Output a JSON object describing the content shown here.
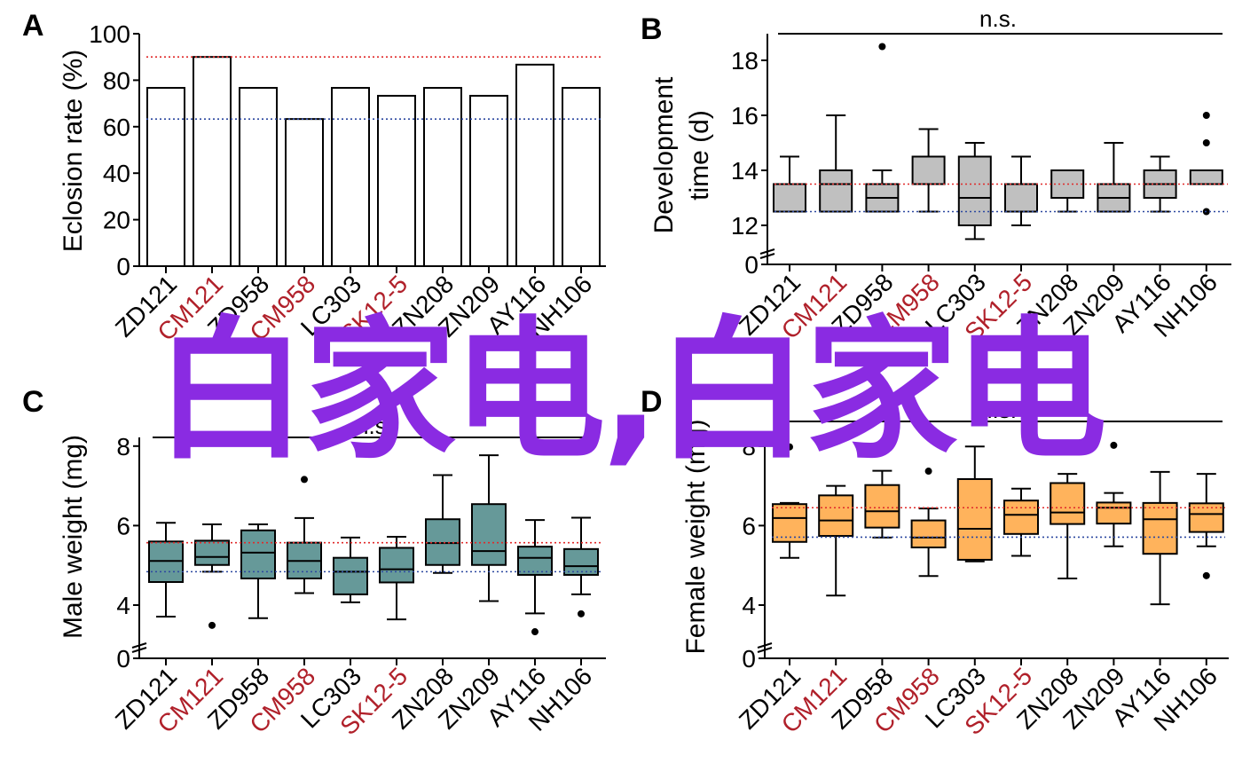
{
  "watermark": "白家电,白家电",
  "colors": {
    "ref_high": "#e02a2a",
    "ref_low": "#2c48a0",
    "label_highlight": "#b0202a",
    "box_B": "#c0c0c0",
    "box_C": "#669999",
    "box_D": "#ffb35c"
  },
  "categories": [
    "ZD121",
    "CM121",
    "ZD958",
    "CM958",
    "LC303",
    "SK12-5",
    "ZN208",
    "ZN209",
    "AY116",
    "NH106"
  ],
  "highlighted_categories": [
    "CM121",
    "CM958",
    "SK12-5"
  ],
  "chart_data": [
    {
      "panel": "A",
      "type": "bar",
      "ylabel": "Eclosion rate (%)",
      "ylim": [
        0,
        100
      ],
      "yticks": [
        0,
        20,
        40,
        60,
        80,
        100
      ],
      "values": [
        76.7,
        90,
        76.7,
        63.3,
        76.7,
        73.3,
        76.7,
        73.3,
        86.7,
        76.7
      ],
      "reference_lines": {
        "red": 90,
        "blue": 63.3
      }
    },
    {
      "panel": "B",
      "type": "box",
      "ylabel": [
        "Development",
        "time (d)"
      ],
      "yticks": [
        0,
        12,
        14,
        16,
        18
      ],
      "axis_break": true,
      "annotation": "n.s.",
      "boxes": [
        {
          "min": 12.5,
          "q1": 12.5,
          "median": 12.5,
          "q3": 13.5,
          "max": 14.5,
          "outliers": []
        },
        {
          "min": 12.5,
          "q1": 12.5,
          "median": 13.5,
          "q3": 14,
          "max": 16,
          "outliers": []
        },
        {
          "min": 12.5,
          "q1": 12.5,
          "median": 13,
          "q3": 13.5,
          "max": 14,
          "outliers": [
            18.5
          ]
        },
        {
          "min": 12.5,
          "q1": 13.5,
          "median": 13.5,
          "q3": 14.5,
          "max": 15.5,
          "outliers": []
        },
        {
          "min": 11.5,
          "q1": 12,
          "median": 13,
          "q3": 14.5,
          "max": 15,
          "outliers": []
        },
        {
          "min": 12,
          "q1": 12.5,
          "median": 12.5,
          "q3": 13.5,
          "max": 14.5,
          "outliers": []
        },
        {
          "min": 12.5,
          "q1": 13,
          "median": 13,
          "q3": 14,
          "max": 14,
          "outliers": []
        },
        {
          "min": 12.5,
          "q1": 12.5,
          "median": 13,
          "q3": 13.5,
          "max": 15,
          "outliers": []
        },
        {
          "min": 12.5,
          "q1": 13,
          "median": 13.5,
          "q3": 14,
          "max": 14.5,
          "outliers": []
        },
        {
          "min": 13.5,
          "q1": 13.5,
          "median": 13.5,
          "q3": 14,
          "max": 14,
          "outliers": [
            16,
            15,
            12.5
          ]
        }
      ],
      "reference_lines": {
        "red": 13.5,
        "blue": 12.5
      }
    },
    {
      "panel": "C",
      "type": "box",
      "ylabel": "Male weight (mg)",
      "yticks": [
        0,
        4,
        6,
        8
      ],
      "axis_break": true,
      "annotation": "n.s.",
      "boxes": [
        {
          "min": 3.71,
          "q1": 4.58,
          "median": 5.11,
          "q3": 5.6,
          "max": 6.07,
          "outliers": []
        },
        {
          "min": 4.84,
          "q1": 5.01,
          "median": 5.21,
          "q3": 5.62,
          "max": 6.03,
          "outliers": [
            3.49
          ]
        },
        {
          "min": 3.67,
          "q1": 4.67,
          "median": 5.32,
          "q3": 5.88,
          "max": 6.03,
          "outliers": []
        },
        {
          "min": 4.3,
          "q1": 4.67,
          "median": 5.11,
          "q3": 5.57,
          "max": 6.19,
          "outliers": [
            7.16
          ]
        },
        {
          "min": 4.07,
          "q1": 4.27,
          "median": 4.84,
          "q3": 5.19,
          "max": 5.7,
          "outliers": []
        },
        {
          "min": 3.64,
          "q1": 4.57,
          "median": 4.9,
          "q3": 5.44,
          "max": 5.72,
          "outliers": []
        },
        {
          "min": 4.81,
          "q1": 5.01,
          "median": 5.56,
          "q3": 6.16,
          "max": 7.27,
          "outliers": []
        },
        {
          "min": 4.1,
          "q1": 5.01,
          "median": 5.36,
          "q3": 6.54,
          "max": 7.77,
          "outliers": []
        },
        {
          "min": 3.79,
          "q1": 4.76,
          "median": 5.19,
          "q3": 5.47,
          "max": 6.14,
          "outliers": [
            3.33
          ]
        },
        {
          "min": 4.27,
          "q1": 4.76,
          "median": 4.98,
          "q3": 5.41,
          "max": 6.2,
          "outliers": [
            3.78
          ]
        }
      ],
      "reference_lines": {
        "red": 5.57,
        "blue": 4.84
      }
    },
    {
      "panel": "D",
      "type": "box",
      "ylabel": "Female weight (mg)",
      "yticks": [
        0,
        4,
        6,
        8
      ],
      "axis_break": true,
      "annotation": "n.s.",
      "boxes": [
        {
          "min": 5.19,
          "q1": 5.59,
          "median": 6.19,
          "q3": 6.54,
          "max": 6.57,
          "outliers": [
            7.98
          ]
        },
        {
          "min": 4.24,
          "q1": 5.74,
          "median": 6.13,
          "q3": 6.76,
          "max": 7.0,
          "outliers": []
        },
        {
          "min": 5.7,
          "q1": 5.95,
          "median": 6.36,
          "q3": 7.02,
          "max": 7.38,
          "outliers": []
        },
        {
          "min": 4.73,
          "q1": 5.45,
          "median": 5.7,
          "q3": 6.13,
          "max": 6.43,
          "outliers": [
            7.37
          ]
        },
        {
          "min": 5.1,
          "q1": 5.14,
          "median": 5.92,
          "q3": 7.17,
          "max": 7.99,
          "outliers": []
        },
        {
          "min": 5.24,
          "q1": 5.79,
          "median": 6.27,
          "q3": 6.63,
          "max": 6.93,
          "outliers": []
        },
        {
          "min": 4.67,
          "q1": 6.04,
          "median": 6.33,
          "q3": 7.07,
          "max": 7.3,
          "outliers": []
        },
        {
          "min": 5.48,
          "q1": 6.05,
          "median": 6.45,
          "q3": 6.58,
          "max": 6.82,
          "outliers": [
            8.02
          ]
        },
        {
          "min": 4.02,
          "q1": 5.29,
          "median": 6.16,
          "q3": 6.57,
          "max": 7.35,
          "outliers": []
        },
        {
          "min": 5.48,
          "q1": 5.84,
          "median": 6.29,
          "q3": 6.56,
          "max": 7.3,
          "outliers": [
            4.74
          ]
        }
      ],
      "reference_lines": {
        "red": 6.45,
        "blue": 5.71
      }
    }
  ]
}
